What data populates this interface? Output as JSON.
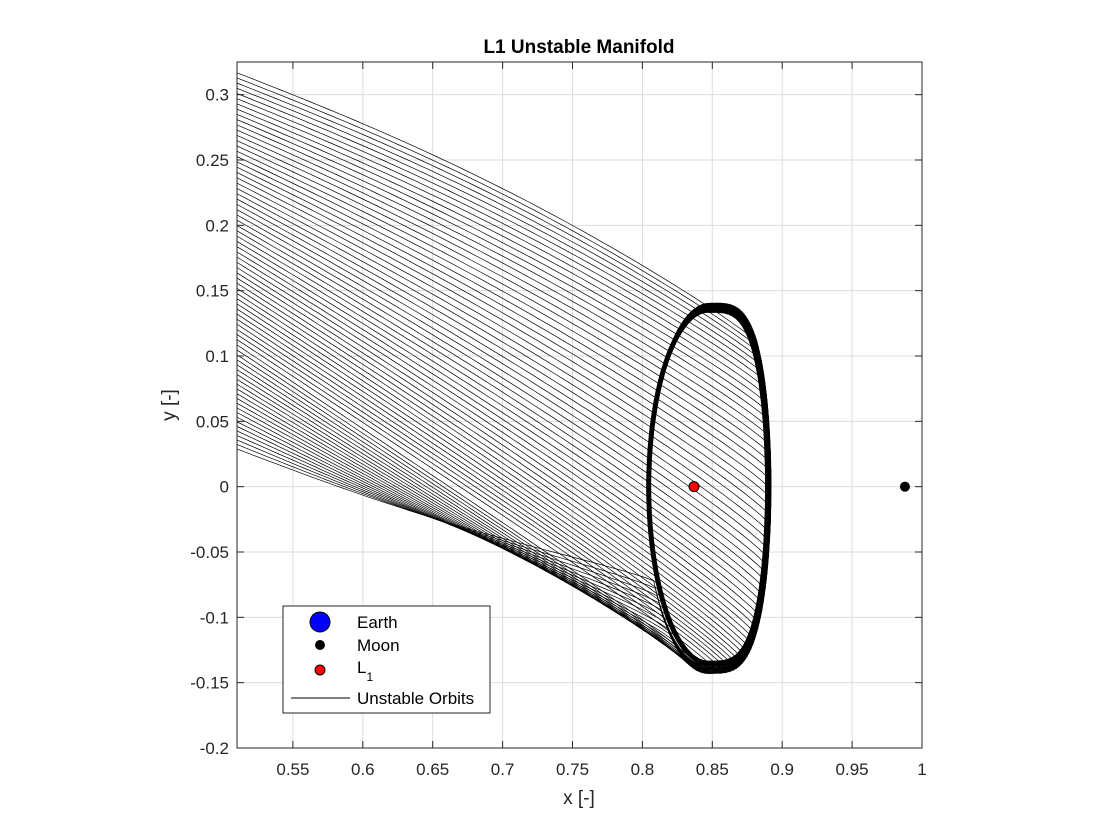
{
  "chart_data": {
    "type": "line",
    "title": "L1 Unstable Manifold",
    "xlabel": "x [-]",
    "ylabel": "y [-]",
    "xlim": [
      0.51,
      1.0
    ],
    "ylim": [
      -0.2,
      0.325
    ],
    "xticks": [
      0.55,
      0.6,
      0.65,
      0.7,
      0.75,
      0.8,
      0.85,
      0.9,
      0.95,
      1.0
    ],
    "xtick_labels": [
      "0.55",
      "0.6",
      "0.65",
      "0.7",
      "0.75",
      "0.8",
      "0.85",
      "0.9",
      "0.95",
      "1"
    ],
    "yticks": [
      -0.2,
      -0.15,
      -0.1,
      -0.05,
      0,
      0.05,
      0.1,
      0.15,
      0.2,
      0.25,
      0.3
    ],
    "ytick_labels": [
      "-0.2",
      "-0.15",
      "-0.1",
      "-0.05",
      "0",
      "0.05",
      "0.1",
      "0.15",
      "0.2",
      "0.25",
      "0.3"
    ],
    "grid": true,
    "legend_position": "bottom-left",
    "series": [
      {
        "name": "Earth",
        "marker": "circle",
        "color": "#0000ff",
        "points": []
      },
      {
        "name": "Moon",
        "marker": "circle",
        "color": "#000000",
        "points": [
          [
            0.9878,
            0
          ]
        ]
      },
      {
        "name": "L1",
        "name_main": "L",
        "name_sub": "1",
        "marker": "circle",
        "color": "#ff0000",
        "points": [
          [
            0.8369,
            0
          ]
        ]
      },
      {
        "name": "Unstable Orbits",
        "marker": "line",
        "color": "#000000",
        "orbit_count": 75,
        "periodic_orbit": {
          "center": [
            0.847,
            0
          ],
          "x_range": [
            0.804,
            0.889
          ],
          "y_range": [
            -0.135,
            0.135
          ]
        },
        "manifold_tail": {
          "upper_edge_at_x_min": 0.325,
          "lower_edge_at_x_min": 0.037,
          "exit_x": 0.51
        }
      }
    ]
  }
}
